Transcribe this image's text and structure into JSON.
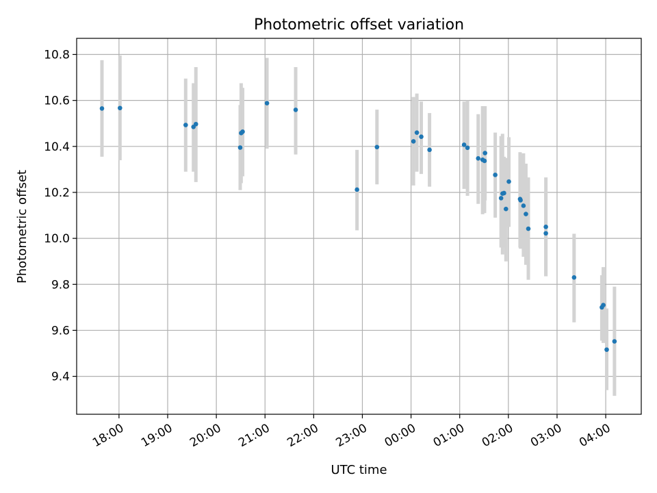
{
  "chart_data": {
    "type": "scatter",
    "title": "Photometric offset variation",
    "xlabel": "UTC time",
    "ylabel": "Photometric offset",
    "x_unit": "UTC hours (times after midnight written as 24 + hour)",
    "xlim": [
      17.13,
      28.73
    ],
    "ylim": [
      9.235,
      10.87
    ],
    "grid": true,
    "xticks": [
      {
        "value": 18,
        "label": "18:00"
      },
      {
        "value": 19,
        "label": "19:00"
      },
      {
        "value": 20,
        "label": "20:00"
      },
      {
        "value": 21,
        "label": "21:00"
      },
      {
        "value": 22,
        "label": "22:00"
      },
      {
        "value": 23,
        "label": "23:00"
      },
      {
        "value": 24,
        "label": "00:00"
      },
      {
        "value": 25,
        "label": "01:00"
      },
      {
        "value": 26,
        "label": "02:00"
      },
      {
        "value": 27,
        "label": "03:00"
      },
      {
        "value": 28,
        "label": "04:00"
      }
    ],
    "yticks": [
      {
        "value": 9.4,
        "label": "9.4"
      },
      {
        "value": 9.6,
        "label": "9.6"
      },
      {
        "value": 9.8,
        "label": "9.8"
      },
      {
        "value": 10.0,
        "label": "10.0"
      },
      {
        "value": 10.2,
        "label": "10.2"
      },
      {
        "value": 10.4,
        "label": "10.4"
      },
      {
        "value": 10.6,
        "label": "10.6"
      },
      {
        "value": 10.8,
        "label": "10.8"
      }
    ],
    "series": [
      {
        "marker_color": "#1f77b4",
        "errorbar_color": "#d3d3d3",
        "points": [
          {
            "x": 17.65,
            "y": 10.565,
            "lo": 10.355,
            "hi": 10.775
          },
          {
            "x": 18.02,
            "y": 10.567,
            "lo": 10.34,
            "hi": 10.795
          },
          {
            "x": 19.37,
            "y": 10.493,
            "lo": 10.29,
            "hi": 10.695
          },
          {
            "x": 19.53,
            "y": 10.485,
            "lo": 10.29,
            "hi": 10.675
          },
          {
            "x": 19.58,
            "y": 10.497,
            "lo": 10.245,
            "hi": 10.745
          },
          {
            "x": 20.49,
            "y": 10.395,
            "lo": 10.21,
            "hi": 10.58
          },
          {
            "x": 20.51,
            "y": 10.458,
            "lo": 10.24,
            "hi": 10.675
          },
          {
            "x": 20.54,
            "y": 10.464,
            "lo": 10.27,
            "hi": 10.655
          },
          {
            "x": 21.04,
            "y": 10.588,
            "lo": 10.39,
            "hi": 10.785
          },
          {
            "x": 21.63,
            "y": 10.559,
            "lo": 10.365,
            "hi": 10.745
          },
          {
            "x": 22.89,
            "y": 10.212,
            "lo": 10.035,
            "hi": 10.385
          },
          {
            "x": 23.3,
            "y": 10.397,
            "lo": 10.235,
            "hi": 10.56
          },
          {
            "x": 24.05,
            "y": 10.422,
            "lo": 10.23,
            "hi": 10.615
          },
          {
            "x": 24.12,
            "y": 10.46,
            "lo": 10.29,
            "hi": 10.63
          },
          {
            "x": 24.21,
            "y": 10.442,
            "lo": 10.28,
            "hi": 10.595
          },
          {
            "x": 24.38,
            "y": 10.385,
            "lo": 10.225,
            "hi": 10.545
          },
          {
            "x": 25.09,
            "y": 10.407,
            "lo": 10.215,
            "hi": 10.595
          },
          {
            "x": 25.16,
            "y": 10.394,
            "lo": 10.185,
            "hi": 10.6
          },
          {
            "x": 25.38,
            "y": 10.348,
            "lo": 10.15,
            "hi": 10.54
          },
          {
            "x": 25.47,
            "y": 10.342,
            "lo": 10.105,
            "hi": 10.575
          },
          {
            "x": 25.51,
            "y": 10.337,
            "lo": 10.11,
            "hi": 10.575
          },
          {
            "x": 25.52,
            "y": 10.371,
            "lo": 10.165,
            "hi": 10.575
          },
          {
            "x": 25.73,
            "y": 10.276,
            "lo": 10.09,
            "hi": 10.46
          },
          {
            "x": 25.85,
            "y": 10.175,
            "lo": 9.96,
            "hi": 10.445
          },
          {
            "x": 25.88,
            "y": 10.195,
            "lo": 9.93,
            "hi": 10.455
          },
          {
            "x": 25.91,
            "y": 10.197,
            "lo": 9.96,
            "hi": 10.355
          },
          {
            "x": 25.95,
            "y": 10.128,
            "lo": 9.9,
            "hi": 10.35
          },
          {
            "x": 26.01,
            "y": 10.247,
            "lo": 10.05,
            "hi": 10.44
          },
          {
            "x": 26.24,
            "y": 10.171,
            "lo": 9.96,
            "hi": 10.375
          },
          {
            "x": 26.25,
            "y": 10.166,
            "lo": 9.955,
            "hi": 10.365
          },
          {
            "x": 26.31,
            "y": 10.142,
            "lo": 9.92,
            "hi": 10.37
          },
          {
            "x": 26.36,
            "y": 10.106,
            "lo": 9.885,
            "hi": 10.325
          },
          {
            "x": 26.41,
            "y": 10.042,
            "lo": 9.82,
            "hi": 10.265
          },
          {
            "x": 26.77,
            "y": 10.05,
            "lo": 9.835,
            "hi": 10.265
          },
          {
            "x": 26.77,
            "y": 10.022,
            "lo": 9.835,
            "hi": 10.205
          },
          {
            "x": 27.35,
            "y": 9.83,
            "lo": 9.635,
            "hi": 10.02
          },
          {
            "x": 27.92,
            "y": 9.7,
            "lo": 9.555,
            "hi": 9.84
          },
          {
            "x": 27.95,
            "y": 9.71,
            "lo": 9.545,
            "hi": 9.875
          },
          {
            "x": 28.02,
            "y": 9.516,
            "lo": 9.34,
            "hi": 9.695
          },
          {
            "x": 28.18,
            "y": 9.552,
            "lo": 9.315,
            "hi": 9.79
          }
        ]
      }
    ]
  }
}
